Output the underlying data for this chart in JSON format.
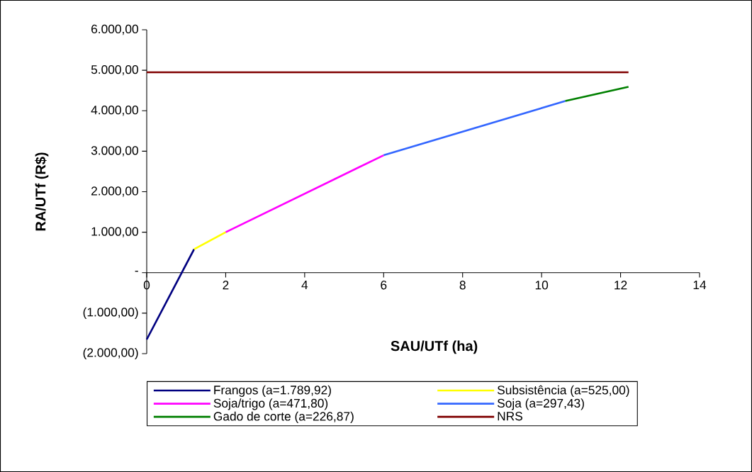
{
  "chart_data": {
    "type": "line",
    "xlabel": "SAU/UTf (ha)",
    "ylabel": "RA/UTf (R$)",
    "xlim": [
      0,
      14
    ],
    "xticks": [
      0,
      2,
      4,
      6,
      8,
      10,
      12,
      14
    ],
    "ylim": [
      -2000,
      6000
    ],
    "yticks": [
      {
        "value": -2000,
        "label": "(2.000,00)"
      },
      {
        "value": -1000,
        "label": "(1.000,00)"
      },
      {
        "value": 0,
        "label": "-"
      },
      {
        "value": 1000,
        "label": "1.000,00"
      },
      {
        "value": 2000,
        "label": "2.000,00"
      },
      {
        "value": 3000,
        "label": "3.000,00"
      },
      {
        "value": 4000,
        "label": "4.000,00"
      },
      {
        "value": 5000,
        "label": "5.000,00"
      },
      {
        "value": 6000,
        "label": "6.000,00"
      }
    ],
    "series": [
      {
        "name": "Frangos (a=1.789,92)",
        "color": "#000080",
        "x": [
          0,
          1.2
        ],
        "values": [
          -1650,
          580
        ]
      },
      {
        "name": "Subsistência (a=525,00)",
        "color": "#ffff00",
        "x": [
          1.2,
          2
        ],
        "values": [
          580,
          1000
        ]
      },
      {
        "name": "Soja/trigo (a=471,80)",
        "color": "#ff00ff",
        "x": [
          2,
          6
        ],
        "values": [
          1000,
          2900
        ]
      },
      {
        "name": "Soja (a=297,43)",
        "color": "#3366ff",
        "x": [
          6,
          10.6
        ],
        "values": [
          2900,
          4240
        ]
      },
      {
        "name": "Gado de corte (a=226,87)",
        "color": "#008000",
        "x": [
          10.6,
          12.2
        ],
        "values": [
          4240,
          4590
        ]
      },
      {
        "name": "NRS",
        "color": "#800000",
        "x": [
          0,
          12.2
        ],
        "values": [
          4950,
          4950
        ]
      }
    ],
    "grid": false,
    "legend": "bottom",
    "marker": "none",
    "line_style": "solid"
  }
}
